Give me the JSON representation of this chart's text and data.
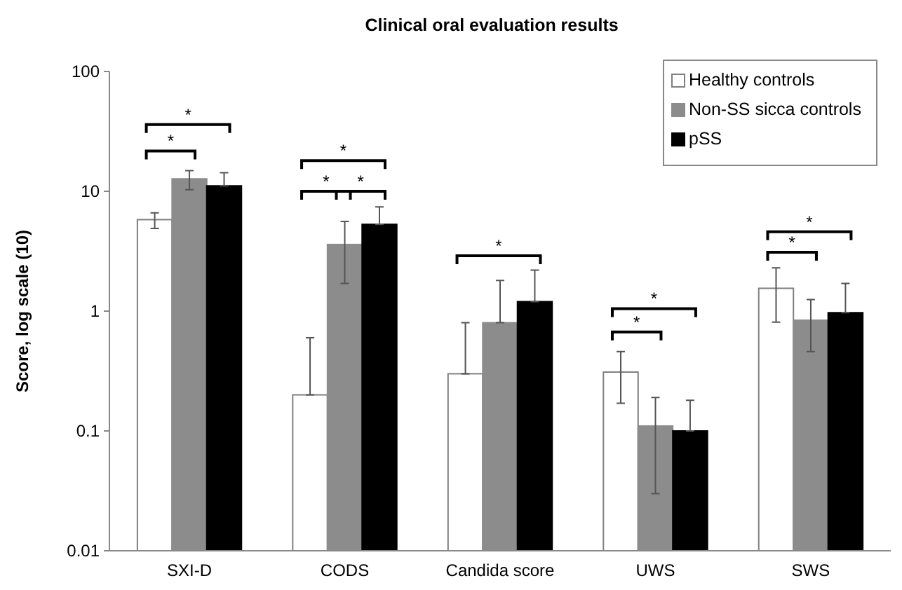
{
  "chart_data": {
    "type": "bar",
    "title": "Clinical oral evaluation results",
    "ylabel": "Score, log scale (10)",
    "categories": [
      "SXI-D",
      "CODS",
      "Candida score",
      "UWS",
      "SWS"
    ],
    "series": [
      {
        "name": "Healthy controls",
        "color": "#ffffff",
        "values": [
          5.8,
          0.2,
          0.3,
          0.31,
          1.55
        ],
        "errors": [
          [
            4.9,
            6.6
          ],
          [
            0.2,
            0.6
          ],
          [
            0.3,
            0.8
          ],
          [
            0.17,
            0.46
          ],
          [
            0.81,
            2.3
          ]
        ]
      },
      {
        "name": "Non-SS sicca controls",
        "color": "#8c8c8c",
        "values": [
          12.7,
          3.6,
          0.8,
          0.11,
          0.84
        ],
        "errors": [
          [
            10.3,
            14.9
          ],
          [
            1.7,
            5.6
          ],
          [
            0.8,
            1.8
          ],
          [
            0.03,
            0.19
          ],
          [
            0.46,
            1.25
          ]
        ]
      },
      {
        "name": "pSS",
        "color": "#000000",
        "values": [
          11.1,
          5.3,
          1.2,
          0.1,
          0.97
        ],
        "errors": [
          [
            11.1,
            14.3
          ],
          [
            5.3,
            7.4
          ],
          [
            1.2,
            2.2
          ],
          [
            0.1,
            0.18
          ],
          [
            0.97,
            1.7
          ]
        ]
      }
    ],
    "log": true,
    "ylim": [
      0.01,
      100
    ],
    "yticks": [
      0.01,
      0.1,
      1,
      10,
      100
    ],
    "grid": false,
    "legend": "top right",
    "annotations": [
      "*",
      "*",
      "*",
      "*",
      "*",
      "*",
      "*",
      "*",
      "*",
      "*"
    ]
  }
}
